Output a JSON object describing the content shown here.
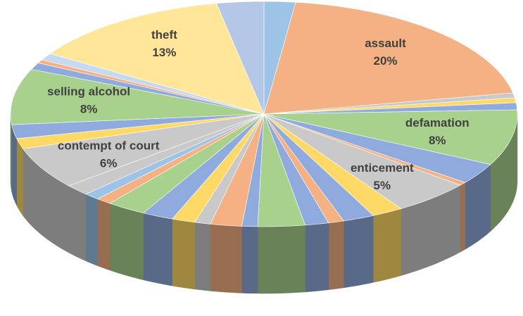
{
  "chart_data": {
    "type": "pie3d",
    "categories": [
      null,
      "assault",
      null,
      null,
      null,
      "defamation",
      null,
      null,
      "enticement",
      null,
      null,
      null,
      null,
      null,
      null,
      null,
      null,
      null,
      null,
      null,
      null,
      null,
      null,
      "contempt of court",
      null,
      null,
      "selling alcohol",
      null,
      null,
      null,
      "theft",
      null
    ],
    "values": [
      2,
      20,
      0.7,
      0.7,
      1,
      8,
      3,
      0.5,
      5,
      2,
      2,
      1,
      1.5,
      3,
      1,
      2,
      1,
      1.5,
      2,
      2.5,
      1,
      1,
      1.6,
      6,
      1.5,
      2,
      8,
      1,
      0.5,
      1,
      13,
      3
    ],
    "value_labels": [
      null,
      "20%",
      null,
      null,
      null,
      "8%",
      null,
      null,
      "5%",
      null,
      null,
      null,
      null,
      null,
      null,
      null,
      null,
      null,
      null,
      null,
      null,
      null,
      null,
      "6%",
      null,
      null,
      "8%",
      null,
      null,
      null,
      "13%",
      null
    ],
    "colors": [
      "#9dc3e6",
      "#f4b183",
      "#c9c9c9",
      "#ffd966",
      "#8faadc",
      "#a9d18e",
      "#8faadc",
      "#f4b183",
      "#c9c9c9",
      "#ffd966",
      "#8faadc",
      "#f4b183",
      "#8faadc",
      "#a9d18e",
      "#8faadc",
      "#f4b183",
      "#c9c9c9",
      "#ffd966",
      "#8faadc",
      "#a9d18e",
      "#f4b183",
      "#9dc3e6",
      "#c9c9c9",
      "#c9c9c9",
      "#ffd966",
      "#8faadc",
      "#a9d18e",
      "#8faadc",
      "#f4b183",
      "#c5d9f1",
      "#ffe699",
      "#b4c7e7"
    ]
  }
}
